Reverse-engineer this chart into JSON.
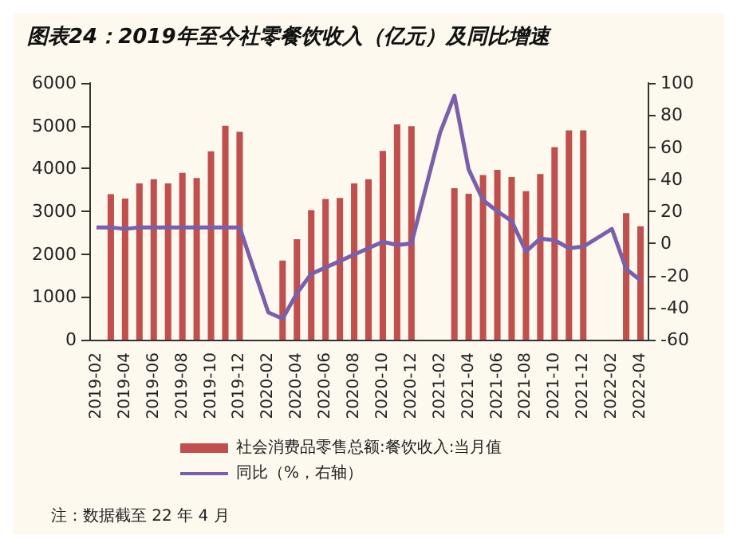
{
  "chart_data": {
    "type": "bar",
    "title": "图表24：2019年至今社零餐饮收入（亿元）及同比增速",
    "categories": [
      "2019-02",
      null,
      "2019-04",
      null,
      "2019-06",
      null,
      "2019-08",
      null,
      "2019-10",
      null,
      "2019-12",
      null,
      "2020-02",
      null,
      "2020-04",
      null,
      "2020-06",
      null,
      "2020-08",
      null,
      "2020-10",
      null,
      "2020-12",
      null,
      "2021-02",
      null,
      "2021-04",
      null,
      "2021-06",
      null,
      "2021-08",
      null,
      "2021-10",
      null,
      "2021-12",
      null,
      "2022-02",
      null,
      "2022-04"
    ],
    "series": [
      {
        "name": "社会消费品零售总额:餐饮收入:当月值",
        "color": "#c0504d",
        "values": [
          null,
          3400,
          3300,
          3650,
          3750,
          3650,
          3900,
          3780,
          4400,
          5000,
          4860,
          null,
          null,
          1850,
          2350,
          3030,
          3290,
          3310,
          3650,
          3750,
          4410,
          5030,
          4990,
          null,
          null,
          3540,
          3410,
          3850,
          3970,
          3800,
          3470,
          3870,
          4500,
          4890,
          4890,
          null,
          null,
          2960,
          2650
        ]
      },
      {
        "name": "同比（%，右轴）",
        "type": "line",
        "axis": "y2",
        "color": "#7b5fa8",
        "values": [
          10,
          10,
          9,
          10,
          10,
          10,
          10,
          10,
          10,
          10,
          10,
          null,
          -43,
          -47,
          -31,
          -19,
          -15,
          -11,
          -7,
          -3,
          1,
          -1,
          0,
          null,
          69,
          92,
          46,
          27,
          20,
          14,
          -5,
          3,
          2,
          -3,
          -2,
          null,
          9,
          -16,
          -23
        ]
      }
    ],
    "ylim": [
      0,
      6000
    ],
    "yticks": [
      0,
      1000,
      2000,
      3000,
      4000,
      5000,
      6000
    ],
    "y2lim": [
      -60,
      100
    ],
    "y2ticks": [
      -60,
      -40,
      -20,
      0,
      20,
      40,
      60,
      80,
      100
    ],
    "legend": "bottom",
    "marker": "none",
    "annotations": [
      "注：数据截至 22 年 4 月"
    ]
  }
}
